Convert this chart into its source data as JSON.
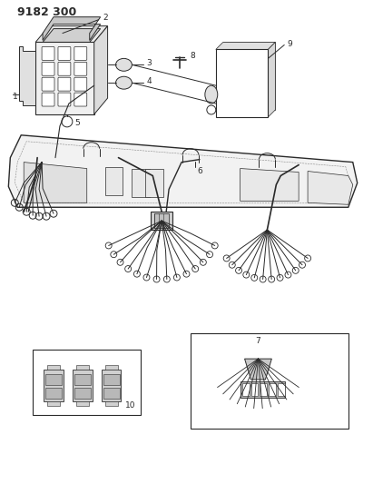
{
  "title": "9182 300",
  "bg_color": "#ffffff",
  "lc": "#2a2a2a",
  "lc_light": "#555555",
  "fig_width": 4.11,
  "fig_height": 5.33,
  "dpi": 100,
  "label_fs": 6.5,
  "title_fs": 9
}
